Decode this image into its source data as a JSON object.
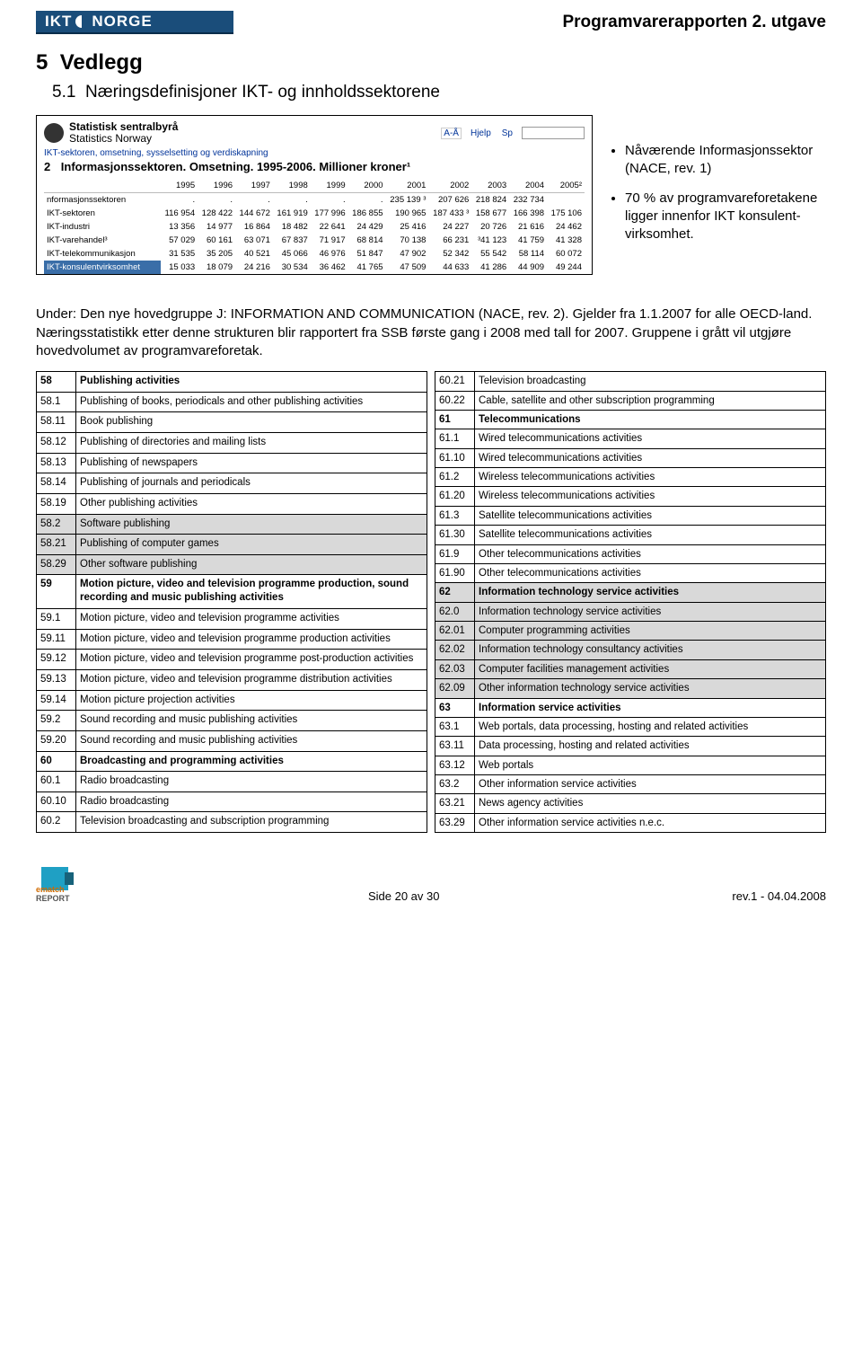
{
  "header": {
    "logo_left": "IKT",
    "logo_right": "NORGE",
    "doc_title": "Programvarerapporten 2. utgave"
  },
  "section_no": "5",
  "section_title": "Vedlegg",
  "subsection_no": "5.1",
  "subsection_title": "Næringsdefinisjoner IKT- og innholdssektorene",
  "ssb": {
    "name1": "Statistisk sentralbyrå",
    "name2": "Statistics Norway",
    "tool_az": "A-Å",
    "tool_help": "Hjelp",
    "tool_sp": "Sp",
    "blue_line": "IKT-sektoren, omsetning, sysselsetting og verdiskapning",
    "tab_no": "2",
    "tab_title": "Informasjonssektoren. Omsetning. 1995-2006. Millioner kroner¹",
    "years": [
      "1995",
      "1996",
      "1997",
      "1998",
      "1999",
      "2000",
      "2001",
      "2002",
      "2003",
      "2004",
      "2005²"
    ],
    "rows": [
      {
        "label": "nformasjonssektoren",
        "vals": [
          ".",
          ".",
          ".",
          ".",
          ".",
          ".",
          "235 139 ³",
          "207 626",
          "218 824",
          "232 734",
          ""
        ]
      },
      {
        "label": "IKT-sektoren",
        "vals": [
          "116 954",
          "128 422",
          "144 672",
          "161 919",
          "177 996",
          "186 855",
          "190 965",
          "187 433 ³",
          "158 677",
          "166 398",
          "175 106"
        ]
      },
      {
        "label": "IKT-industri",
        "vals": [
          "13 356",
          "14 977",
          "16 864",
          "18 482",
          "22 641",
          "24 429",
          "25 416",
          "24 227",
          "20 726",
          "21 616",
          "24 462"
        ]
      },
      {
        "label": "IKT-varehandel³",
        "vals": [
          "57 029",
          "60 161",
          "63 071",
          "67 837",
          "71 917",
          "68 814",
          "70 138",
          "66 231",
          "³41 123",
          "41 759",
          "41 328"
        ]
      },
      {
        "label": "IKT-telekommunikasjon",
        "vals": [
          "31 535",
          "35 205",
          "40 521",
          "45 066",
          "46 976",
          "51 847",
          "47 902",
          "52 342",
          "55 542",
          "58 114",
          "60 072"
        ]
      },
      {
        "label": "IKT-konsulentvirksomhet",
        "vals": [
          "15 033",
          "18 079",
          "24 216",
          "30 534",
          "36 462",
          "41 765",
          "47 509",
          "44 633",
          "41 286",
          "44 909",
          "49 244"
        ],
        "hl": true
      }
    ]
  },
  "bullets": {
    "b1": "Nåværende Informasjons­sektor (NACE, rev. 1)",
    "b2": "70 % av programvare­foretakene ligger innenfor IKT konsulent­virksomhet."
  },
  "under_para": "Under: Den nye hovedgruppe J: INFORMATION AND COMMUNICATION (NACE, rev. 2). Gjelder fra 1.1.2007 for alle OECD-land. Næringsstatistikk etter denne strukturen blir rapportert fra SSB første gang i 2008 med tall for 2007. Gruppene i grått vil utgjøre hovedvolumet av programvareforetak.",
  "nace_left": [
    {
      "c": "58",
      "t": "Publishing activities",
      "b": true
    },
    {
      "c": "58.1",
      "t": "Publishing of books, periodicals and other publishing activities"
    },
    {
      "c": "58.11",
      "t": "Book publishing"
    },
    {
      "c": "58.12",
      "t": "Publishing of directories and mailing lists"
    },
    {
      "c": "58.13",
      "t": "Publishing of newspapers"
    },
    {
      "c": "58.14",
      "t": "Publishing of journals and periodicals"
    },
    {
      "c": "58.19",
      "t": "Other publishing activities"
    },
    {
      "c": "58.2",
      "t": "Software publishing",
      "g": true
    },
    {
      "c": "58.21",
      "t": "Publishing of computer games",
      "g": true
    },
    {
      "c": "58.29",
      "t": "Other software publishing",
      "g": true
    },
    {
      "c": "59",
      "t": "Motion picture, video and television programme production, sound recording and music publishing activities",
      "b": true
    },
    {
      "c": "59.1",
      "t": "Motion picture, video and television programme activities"
    },
    {
      "c": "59.11",
      "t": "Motion picture, video and television programme production activities"
    },
    {
      "c": "59.12",
      "t": "Motion picture, video and television programme post-production activities"
    },
    {
      "c": "59.13",
      "t": "Motion picture, video and television programme distribution activities"
    },
    {
      "c": "59.14",
      "t": "Motion picture projection activities"
    },
    {
      "c": "59.2",
      "t": "Sound recording and music publishing activities"
    },
    {
      "c": "59.20",
      "t": "Sound recording and music publishing activities"
    },
    {
      "c": "60",
      "t": "Broadcasting and programming activities",
      "b": true
    },
    {
      "c": "60.1",
      "t": "Radio broadcasting"
    },
    {
      "c": "60.10",
      "t": "Radio broadcasting"
    },
    {
      "c": "60.2",
      "t": "Television broadcasting and subscription programming"
    }
  ],
  "nace_right": [
    {
      "c": "60.21",
      "t": "Television broadcasting"
    },
    {
      "c": "60.22",
      "t": "Cable, satellite and other subscription programming"
    },
    {
      "c": "61",
      "t": "Telecommunications",
      "b": true
    },
    {
      "c": "61.1",
      "t": "Wired telecommunications activities"
    },
    {
      "c": "61.10",
      "t": "Wired telecommunications activities"
    },
    {
      "c": "61.2",
      "t": "Wireless telecommunications activities"
    },
    {
      "c": "61.20",
      "t": "Wireless telecommunications activities"
    },
    {
      "c": "61.3",
      "t": "Satellite telecommunications activities"
    },
    {
      "c": "61.30",
      "t": "Satellite telecommunications activities"
    },
    {
      "c": "61.9",
      "t": "Other telecommunications activities"
    },
    {
      "c": "61.90",
      "t": "Other telecommunications activities"
    },
    {
      "c": "62",
      "t": "Information technology service activities",
      "b": true,
      "g": true
    },
    {
      "c": "62.0",
      "t": "Information technology service activities",
      "g": true
    },
    {
      "c": "62.01",
      "t": "Computer programming activities",
      "g": true
    },
    {
      "c": "62.02",
      "t": "Information technology consultancy activities",
      "g": true
    },
    {
      "c": "62.03",
      "t": "Computer facilities management activities",
      "g": true
    },
    {
      "c": "62.09",
      "t": "Other information technology service activities",
      "g": true
    },
    {
      "c": "63",
      "t": "Information service activities",
      "b": true
    },
    {
      "c": "63.1",
      "t": "Web portals, data processing, hosting and related activities"
    },
    {
      "c": "63.11",
      "t": "Data processing, hosting and related activities"
    },
    {
      "c": "63.12",
      "t": "Web portals"
    },
    {
      "c": "63.2",
      "t": "Other information service activities"
    },
    {
      "c": "63.21",
      "t": "News agency activities"
    },
    {
      "c": "63.29",
      "t": "Other information service activities n.e.c."
    }
  ],
  "footer": {
    "page": "Side 20 av 30",
    "rev": "rev.1 - 04.04.2008",
    "ematch_a": "ematch",
    "ematch_b": "REPORT"
  }
}
